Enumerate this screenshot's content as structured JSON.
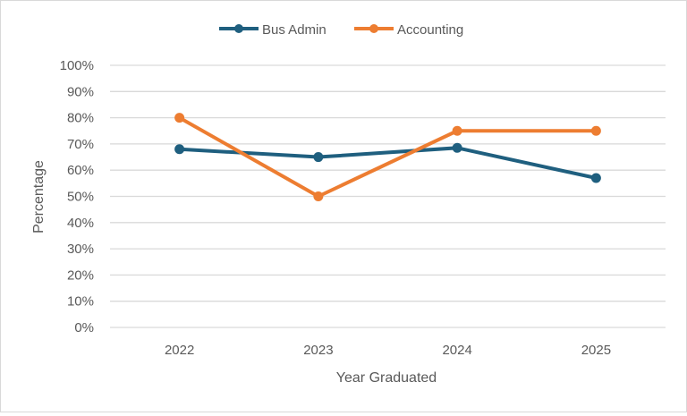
{
  "chart_data": {
    "type": "line",
    "title": "",
    "xlabel": "Year Graduated",
    "ylabel": "Percentage",
    "categories": [
      "2022",
      "2023",
      "2024",
      "2025"
    ],
    "series": [
      {
        "name": "Bus Admin",
        "color": "#1f5f7f",
        "values": [
          68,
          65,
          68.5,
          57
        ]
      },
      {
        "name": "Accounting",
        "color": "#ed7d31",
        "values": [
          80,
          50,
          75,
          75
        ]
      }
    ],
    "ylim": [
      0,
      100
    ],
    "yticks": [
      "0%",
      "10%",
      "20%",
      "30%",
      "40%",
      "50%",
      "60%",
      "70%",
      "80%",
      "90%",
      "100%"
    ],
    "grid": true,
    "legend_position": "top"
  },
  "legend": {
    "items": [
      {
        "label": "Bus Admin",
        "color": "#1f5f7f"
      },
      {
        "label": "Accounting",
        "color": "#ed7d31"
      }
    ]
  },
  "axes": {
    "x_title": "Year Graduated",
    "y_title": "Percentage"
  }
}
